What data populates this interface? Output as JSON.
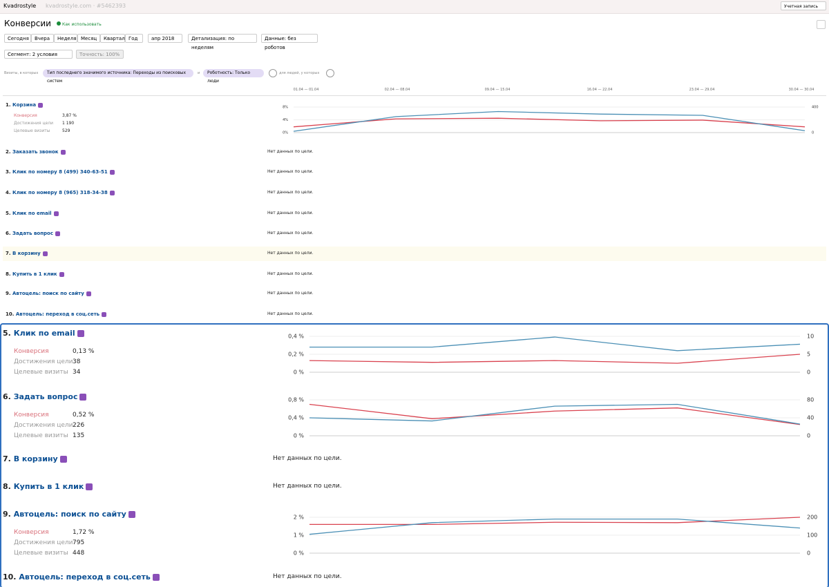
{
  "topbar": {
    "account": "Kvadrostyle",
    "site": "kvadrostyle.com · #5462393",
    "user": "Учетная запись"
  },
  "header": {
    "title": "Конверсии",
    "help": "Как использовать"
  },
  "periods": [
    "Сегодня",
    "Вчера",
    "Неделя",
    "Месяц",
    "Квартал",
    "Год"
  ],
  "month": "апр 2018",
  "detail": "Детализация: по неделям",
  "data_filter": "Данные: без роботов",
  "segment": "Сегмент: 2 условия",
  "accuracy": "Точность: 100%",
  "filters": {
    "prefix": "Визиты, в которых",
    "conditions": [
      "Тип последнего значимого источника: Переходы из поисковых систем",
      "Роботность: Только люди"
    ],
    "joiner": "и",
    "suffix": "для людей, у которых"
  },
  "dates": [
    "01.04 — 01.04",
    "02.04 — 08.04",
    "09.04 — 15.04",
    "16.04 — 22.04",
    "23.04 — 29.04",
    "30.04 — 30.04"
  ],
  "stat_labels": [
    "Конверсия",
    "Достижения цели",
    "Целевые визиты"
  ],
  "no_data": "Нет данных по цели.",
  "goals": [
    {
      "number": "1.",
      "name": "Корзина",
      "conversion": "3,87 %",
      "reached": "1 190",
      "visits": "529",
      "chart": {
        "type": "line",
        "ylim": [
          0,
          8
        ],
        "yticks": [
          {
            "value": 0,
            "label": "0%"
          },
          {
            "value": 4,
            "label": "4%"
          },
          {
            "value": 8,
            "label": "8%"
          }
        ],
        "y2lim": [
          0,
          400
        ],
        "y2ticks": [
          0,
          400
        ],
        "series": [
          {
            "color": "#d9414e",
            "values": [
              1.8,
              4.3,
              4.5,
              3.7,
              3.9,
              1.8
            ]
          },
          {
            "color": "#4a8fb5",
            "axis": "y2",
            "values": [
              20,
              250,
              330,
              290,
              270,
              30
            ]
          }
        ]
      }
    },
    {
      "number": "2.",
      "name": "Заказать звонок"
    },
    {
      "number": "3.",
      "name": "Клик по номеру 8 (499) 340-63-51"
    },
    {
      "number": "4.",
      "name": "Клик по номеру 8 (965) 318-34-38"
    },
    {
      "number": "5.",
      "name": "Клик по email"
    },
    {
      "number": "6.",
      "name": "Задать вопрос"
    },
    {
      "number": "7.",
      "name": "В корзину"
    },
    {
      "number": "8.",
      "name": "Купить в 1 клик"
    },
    {
      "number": "9.",
      "name": "Автоцель: поиск по сайту"
    },
    {
      "number": "10.",
      "name": "Автоцель: переход в соц.сеть"
    }
  ],
  "detail_goals": [
    {
      "number": "5.",
      "name": "Клик по email",
      "conversion": "0,13 %",
      "reached": "38",
      "visits": "34",
      "chart": {
        "type": "line",
        "ylim": [
          0,
          0.4
        ],
        "yticks": [
          {
            "value": 0,
            "label": "0 %"
          },
          {
            "value": 0.2,
            "label": "0,2 %"
          },
          {
            "value": 0.4,
            "label": "0,4 %"
          }
        ],
        "y2lim": [
          0,
          10
        ],
        "y2ticks": [
          0,
          5,
          10
        ],
        "series": [
          {
            "color": "#d9414e",
            "values": [
              0.13,
              0.11,
              0.13,
              0.1,
              0.2
            ]
          },
          {
            "color": "#4a8fb5",
            "axis": "y2",
            "values": [
              7,
              7,
              9.8,
              6,
              7.8
            ]
          }
        ]
      }
    },
    {
      "number": "6.",
      "name": "Задать вопрос",
      "conversion": "0,52 %",
      "reached": "226",
      "visits": "135",
      "chart": {
        "type": "line",
        "ylim": [
          0,
          0.8
        ],
        "yticks": [
          {
            "value": 0,
            "label": "0 %"
          },
          {
            "value": 0.4,
            "label": "0,4 %"
          },
          {
            "value": 0.8,
            "label": "0,8 %"
          }
        ],
        "y2lim": [
          0,
          80
        ],
        "y2ticks": [
          0,
          40,
          80
        ],
        "series": [
          {
            "color": "#d9414e",
            "values": [
              0.7,
              0.38,
              0.55,
              0.62,
              0.25
            ]
          },
          {
            "color": "#4a8fb5",
            "axis": "y2",
            "values": [
              40,
              33,
              66,
              70,
              26
            ]
          }
        ]
      }
    },
    {
      "number": "7.",
      "name": "В корзину"
    },
    {
      "number": "8.",
      "name": "Купить в 1 клик"
    },
    {
      "number": "9.",
      "name": "Автоцель: поиск по сайту",
      "conversion": "1,72 %",
      "reached": "795",
      "visits": "448",
      "chart": {
        "type": "line",
        "ylim": [
          0,
          2
        ],
        "yticks": [
          {
            "value": 0,
            "label": "0 %"
          },
          {
            "value": 1,
            "label": "1 %"
          },
          {
            "value": 2,
            "label": "2 %"
          }
        ],
        "y2lim": [
          0,
          200
        ],
        "y2ticks": [
          0,
          100,
          200
        ],
        "series": [
          {
            "color": "#d9414e",
            "values": [
              1.6,
              1.6,
              1.72,
              1.7,
              2.0
            ]
          },
          {
            "color": "#4a8fb5",
            "axis": "y2",
            "values": [
              105,
              170,
              190,
              190,
              140
            ]
          }
        ]
      }
    },
    {
      "number": "10.",
      "name": "Автоцель: переход в соц.сеть"
    }
  ]
}
